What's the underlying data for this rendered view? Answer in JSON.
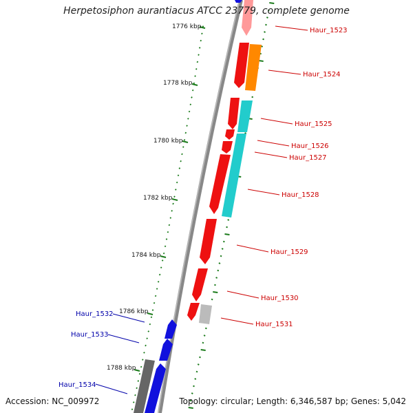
{
  "title": "Herpetosiphon aurantiacus ATCC 23779, complete genome",
  "footer": {
    "accession": "Accession: NC_009972",
    "summary": "Topology: circular; Length: 6,346,587 bp; Genes: 5,042"
  },
  "scale_labels": [
    "1776 kbp",
    "1778 kbp",
    "1780 kbp",
    "1782 kbp",
    "1784 kbp",
    "1786 kbp",
    "1788 kbp"
  ],
  "colors": {
    "red": "#ee1111",
    "orange": "#ff8800",
    "cyan": "#22cccc",
    "blue": "#1111dd",
    "gray": "#666666",
    "lightgray": "#bbbbbb",
    "pink": "#ff9999",
    "tick": "#1a7a1a",
    "red_label": "#cc0000",
    "blue_label": "#0000aa"
  },
  "genes": [
    {
      "name": "Haur_1523",
      "strand": "forward",
      "color": "pink"
    },
    {
      "name": "Haur_1524",
      "strand": "forward",
      "color": "orange"
    },
    {
      "name": "Haur_1525",
      "strand": "forward",
      "color": "cyan"
    },
    {
      "name": "Haur_1526",
      "strand": "forward",
      "color": "red"
    },
    {
      "name": "Haur_1527",
      "strand": "forward",
      "color": "red"
    },
    {
      "name": "Haur_1528",
      "strand": "forward",
      "color": "red"
    },
    {
      "name": "Haur_1529",
      "strand": "forward",
      "color": "red"
    },
    {
      "name": "Haur_1530",
      "strand": "forward",
      "color": "red"
    },
    {
      "name": "Haur_1531",
      "strand": "forward",
      "color": "red"
    },
    {
      "name": "Haur_1532",
      "strand": "reverse",
      "color": "blue"
    },
    {
      "name": "Haur_1533",
      "strand": "reverse",
      "color": "blue"
    },
    {
      "name": "Haur_1534",
      "strand": "reverse",
      "color": "blue"
    }
  ]
}
